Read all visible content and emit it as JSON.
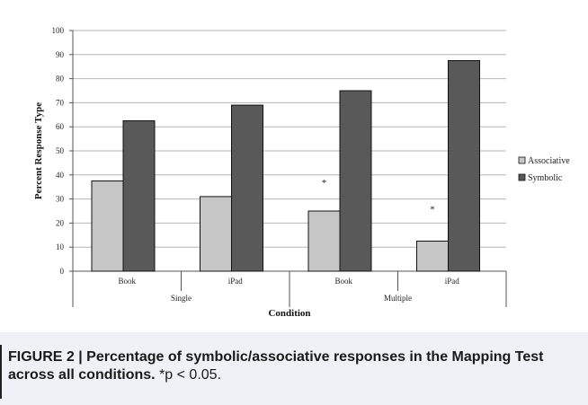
{
  "chart_data": {
    "type": "bar",
    "xlabel": "Condition",
    "ylabel": "Percent Response Type",
    "ylim": [
      0,
      100
    ],
    "yticks": [
      "0",
      "10",
      "20",
      "30",
      "40",
      "50",
      "60",
      "70",
      "80",
      "90",
      "100"
    ],
    "categories": [
      "Book",
      "iPad",
      "Book",
      "iPad"
    ],
    "groups": [
      {
        "label": "Single",
        "categories": [
          "Book",
          "iPad"
        ]
      },
      {
        "label": "Multiple",
        "categories": [
          "Book",
          "iPad"
        ]
      }
    ],
    "series": [
      {
        "name": "Associative",
        "color": "#c6c6c6",
        "values": [
          37.5,
          31,
          25,
          12.5
        ]
      },
      {
        "name": "Symbolic",
        "color": "#595959",
        "values": [
          62.5,
          69,
          75,
          87.5
        ]
      }
    ],
    "annotations": [
      {
        "text": "*",
        "category_index": 2,
        "series": "Associative",
        "y": 37
      },
      {
        "text": "*",
        "category_index": 3,
        "series": "Associative",
        "y": 26
      }
    ],
    "grid": true,
    "legend_position": "right"
  },
  "caption": {
    "label": "FIGURE 2 | Percentage of symbolic/associative responses in the Mapping Test across all conditions.",
    "note": "*p < 0.05."
  }
}
